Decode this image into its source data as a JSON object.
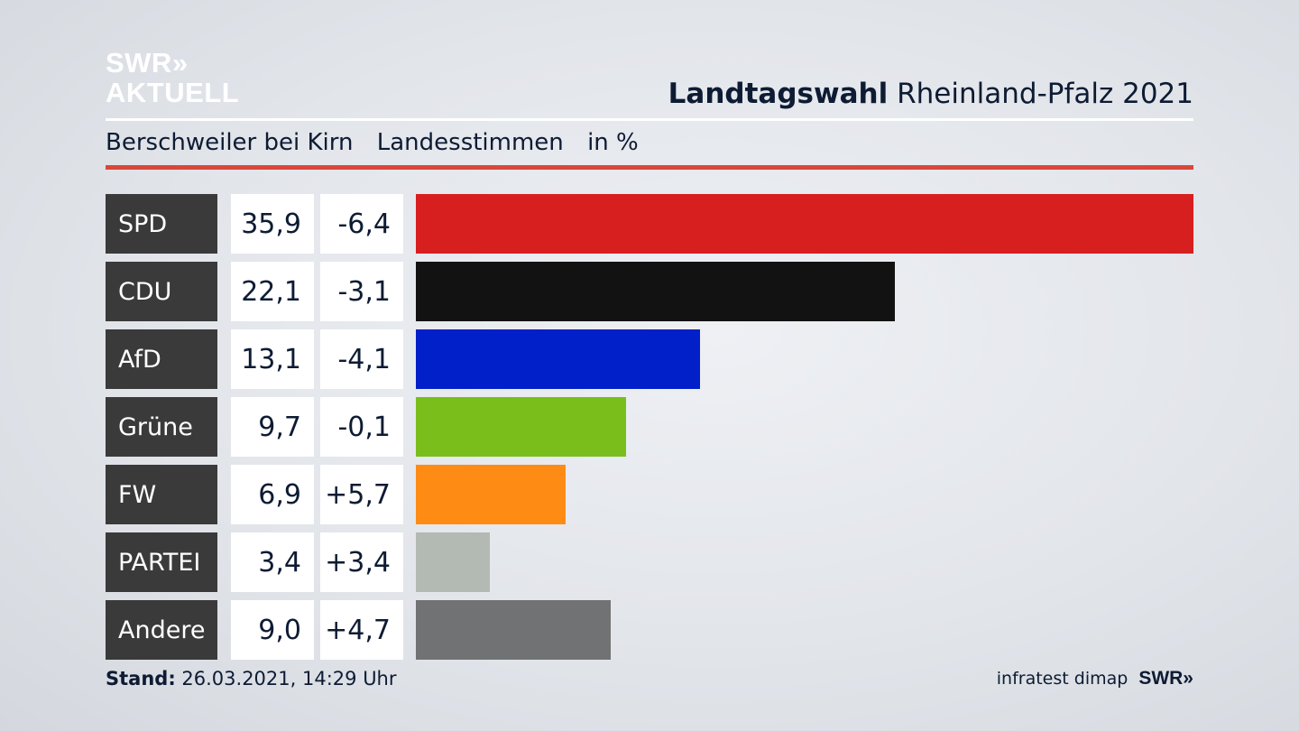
{
  "brand": {
    "line1": "SWR»",
    "line2": "AKTUELL"
  },
  "header": {
    "title_bold": "Landtagswahl",
    "title_rest": "Rheinland-Pfalz 2021",
    "location": "Berschweiler bei Kirn",
    "vote_type": "Landesstimmen",
    "unit": "in %"
  },
  "colors": {
    "accent_line": "#d9473a",
    "label_bg": "#3a3a3a"
  },
  "chart_data": {
    "type": "bar",
    "orientation": "horizontal",
    "categories": [
      "SPD",
      "CDU",
      "AfD",
      "Grüne",
      "FW",
      "PARTEI",
      "Andere"
    ],
    "values": [
      35.9,
      22.1,
      13.1,
      9.7,
      6.9,
      3.4,
      9.0
    ],
    "value_labels": [
      "35,9",
      "22,1",
      "13,1",
      "9,7",
      "6,9",
      "3,4",
      "9,0"
    ],
    "changes": [
      "-6,4",
      "-3,1",
      "-4,1",
      "-0,1",
      "+5,7",
      "+3,4",
      "+4,7"
    ],
    "bar_colors": [
      "#d81f1f",
      "#121212",
      "#0220c9",
      "#79be1b",
      "#fd8b14",
      "#b3bab3",
      "#717273"
    ],
    "xlim": [
      0,
      35.9
    ]
  },
  "footer": {
    "stand_label": "Stand:",
    "stand_value": "26.03.2021, 14:29 Uhr",
    "source": "infratest dimap",
    "brand": "SWR»"
  }
}
